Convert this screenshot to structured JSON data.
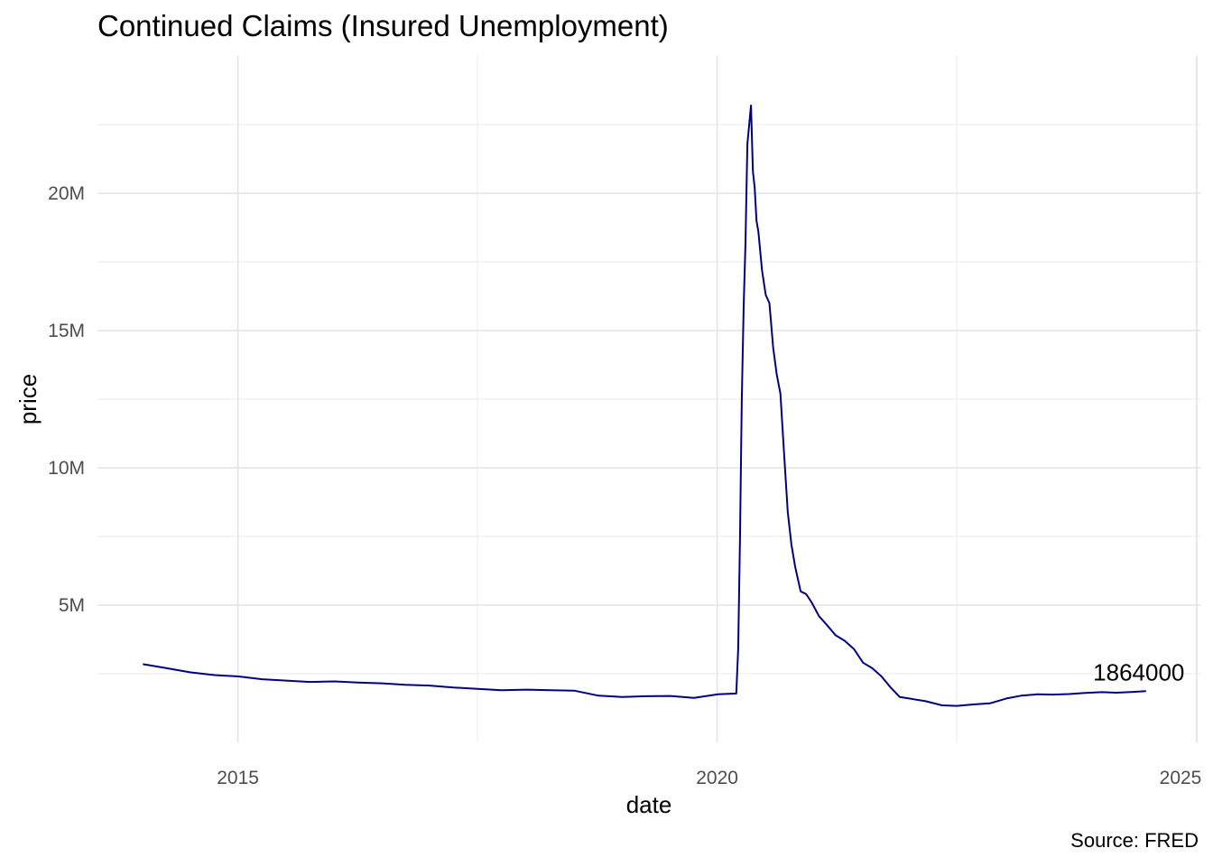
{
  "chart_data": {
    "type": "line",
    "title": "Continued Claims (Insured Unemployment)",
    "caption": "Source: FRED",
    "xlabel": "date",
    "ylabel": "price",
    "x_ticks": [
      "2015",
      "2020",
      "2025"
    ],
    "y_ticks": [
      "5M",
      "10M",
      "15M",
      "20M"
    ],
    "xlim": [
      "2013-07-15",
      "2025-01-15"
    ],
    "ylim": [
      0,
      25000000
    ],
    "grid": true,
    "line_color": "#000080",
    "end_label": "1864000",
    "series": [
      {
        "x": [
          "2014-01-04",
          "2014-04-05",
          "2014-07-05",
          "2014-10-04",
          "2015-01-03",
          "2015-04-04",
          "2015-07-04",
          "2015-10-03",
          "2016-01-02",
          "2016-04-02",
          "2016-07-02",
          "2016-10-01",
          "2016-12-31",
          "2017-04-01",
          "2017-07-01",
          "2017-09-30",
          "2018-01-06",
          "2018-04-07",
          "2018-07-07",
          "2018-10-06",
          "2019-01-05",
          "2019-04-06",
          "2019-07-06",
          "2019-10-05",
          "2020-01-04",
          "2020-03-14",
          "2020-03-21",
          "2020-03-28",
          "2020-04-04",
          "2020-04-11",
          "2020-04-18",
          "2020-04-25",
          "2020-05-02",
          "2020-05-09",
          "2020-05-16",
          "2020-05-23",
          "2020-05-30",
          "2020-06-06",
          "2020-06-20",
          "2020-07-04",
          "2020-07-18",
          "2020-08-01",
          "2020-08-15",
          "2020-08-29",
          "2020-09-12",
          "2020-09-26",
          "2020-10-10",
          "2020-10-24",
          "2020-11-14",
          "2020-12-05",
          "2020-12-26",
          "2021-01-23",
          "2021-02-20",
          "2021-03-27",
          "2021-05-01",
          "2021-06-05",
          "2021-07-10",
          "2021-08-14",
          "2021-09-18",
          "2021-10-23",
          "2021-11-27",
          "2022-01-01",
          "2022-03-05",
          "2022-05-07",
          "2022-07-02",
          "2022-09-03",
          "2022-11-05",
          "2023-01-07",
          "2023-03-04",
          "2023-05-06",
          "2023-07-01",
          "2023-09-02",
          "2023-11-04",
          "2024-01-06",
          "2024-03-02",
          "2024-05-04",
          "2024-06-22"
        ],
        "y": [
          2850000,
          2700000,
          2550000,
          2450000,
          2400000,
          2300000,
          2250000,
          2200000,
          2220000,
          2180000,
          2150000,
          2100000,
          2070000,
          2000000,
          1950000,
          1900000,
          1920000,
          1900000,
          1880000,
          1700000,
          1650000,
          1680000,
          1690000,
          1620000,
          1750000,
          1780000,
          3400000,
          7400000,
          12500000,
          15900000,
          18200000,
          21800000,
          22500000,
          23200000,
          20800000,
          20200000,
          19000000,
          18600000,
          17200000,
          16300000,
          16000000,
          14400000,
          13400000,
          12700000,
          10500000,
          8400000,
          7200000,
          6400000,
          5500000,
          5400000,
          5100000,
          4600000,
          4300000,
          3900000,
          3700000,
          3400000,
          2900000,
          2700000,
          2400000,
          2000000,
          1650000,
          1600000,
          1500000,
          1350000,
          1330000,
          1380000,
          1420000,
          1600000,
          1700000,
          1750000,
          1740000,
          1760000,
          1800000,
          1830000,
          1810000,
          1840000,
          1864000
        ]
      }
    ]
  }
}
